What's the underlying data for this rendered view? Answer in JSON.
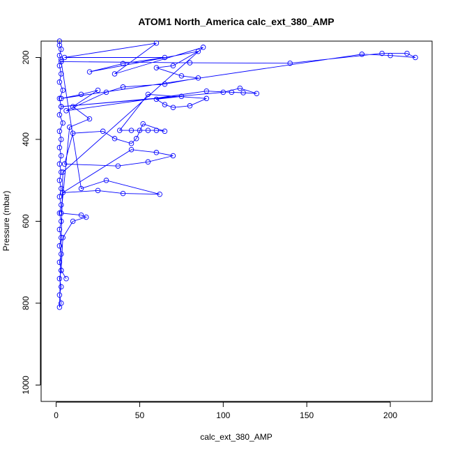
{
  "chart_data": {
    "type": "scatter",
    "title": "ATOM1 North_America calc_ext_380_AMP",
    "xlabel": "calc_ext_380_AMP",
    "ylabel": "Pressure (mbar)",
    "xlim": [
      -9,
      225
    ],
    "ylim": [
      1040,
      160
    ],
    "y_reversed": true,
    "x_ticks": [
      0,
      50,
      100,
      150,
      200
    ],
    "y_ticks": [
      200,
      400,
      600,
      800,
      1000
    ],
    "grid": false,
    "legend": "none",
    "style": "points connected by lines",
    "series": [
      {
        "color": "#0000ff",
        "marker": "open-circle",
        "points": [
          [
            2,
            160
          ],
          [
            2,
            170
          ],
          [
            3,
            180
          ],
          [
            2,
            195
          ],
          [
            3,
            205
          ],
          [
            2,
            220
          ],
          [
            3,
            240
          ],
          [
            2,
            260
          ],
          [
            4,
            280
          ],
          [
            2,
            300
          ],
          [
            3,
            320
          ],
          [
            2,
            340
          ],
          [
            4,
            360
          ],
          [
            2,
            380
          ],
          [
            3,
            400
          ],
          [
            2,
            420
          ],
          [
            3,
            440
          ],
          [
            2,
            460
          ],
          [
            3,
            480
          ],
          [
            2,
            500
          ],
          [
            3,
            520
          ],
          [
            2,
            540
          ],
          [
            3,
            560
          ],
          [
            2,
            580
          ],
          [
            3,
            600
          ],
          [
            2,
            620
          ],
          [
            3,
            640
          ],
          [
            2,
            660
          ],
          [
            3,
            680
          ],
          [
            2,
            700
          ],
          [
            3,
            720
          ],
          [
            2,
            740
          ],
          [
            3,
            760
          ],
          [
            2,
            780
          ],
          [
            3,
            800
          ],
          [
            2,
            810
          ],
          [
            4,
            480
          ],
          [
            88,
            175
          ],
          [
            35,
            240
          ],
          [
            60,
            165
          ],
          [
            5,
            200
          ],
          [
            65,
            200
          ],
          [
            40,
            215
          ],
          [
            20,
            235
          ],
          [
            85,
            185
          ],
          [
            70,
            220
          ],
          [
            60,
            225
          ],
          [
            75,
            245
          ],
          [
            85,
            250
          ],
          [
            65,
            265
          ],
          [
            40,
            272
          ],
          [
            30,
            285
          ],
          [
            6,
            330
          ],
          [
            90,
            282
          ],
          [
            105,
            285
          ],
          [
            112,
            286
          ],
          [
            120,
            288
          ],
          [
            110,
            275
          ],
          [
            100,
            285
          ],
          [
            3,
            320
          ],
          [
            75,
            295
          ],
          [
            60,
            302
          ],
          [
            65,
            315
          ],
          [
            70,
            322
          ],
          [
            80,
            318
          ],
          [
            90,
            300
          ],
          [
            55,
            290
          ],
          [
            38,
            378
          ],
          [
            45,
            378
          ],
          [
            50,
            378
          ],
          [
            55,
            378
          ],
          [
            60,
            378
          ],
          [
            65,
            380
          ],
          [
            52,
            362
          ],
          [
            48,
            398
          ],
          [
            45,
            410
          ],
          [
            35,
            398
          ],
          [
            28,
            380
          ],
          [
            10,
            385
          ],
          [
            5,
            460
          ],
          [
            37,
            465
          ],
          [
            55,
            455
          ],
          [
            70,
            440
          ],
          [
            60,
            432
          ],
          [
            45,
            425
          ],
          [
            4,
            530
          ],
          [
            25,
            525
          ],
          [
            40,
            532
          ],
          [
            62,
            534
          ],
          [
            30,
            500
          ],
          [
            15,
            520
          ],
          [
            3,
            210
          ],
          [
            80,
            213
          ],
          [
            140,
            214
          ],
          [
            195,
            190
          ],
          [
            210,
            190
          ],
          [
            215,
            200
          ],
          [
            200,
            195
          ],
          [
            183,
            192
          ],
          [
            3,
            300
          ],
          [
            15,
            290
          ],
          [
            25,
            280
          ],
          [
            10,
            320
          ],
          [
            20,
            350
          ],
          [
            8,
            370
          ],
          [
            3,
            580
          ],
          [
            15,
            585
          ],
          [
            18,
            590
          ],
          [
            10,
            600
          ],
          [
            4,
            640
          ],
          [
            3,
            720
          ],
          [
            6,
            740
          ]
        ]
      }
    ]
  }
}
